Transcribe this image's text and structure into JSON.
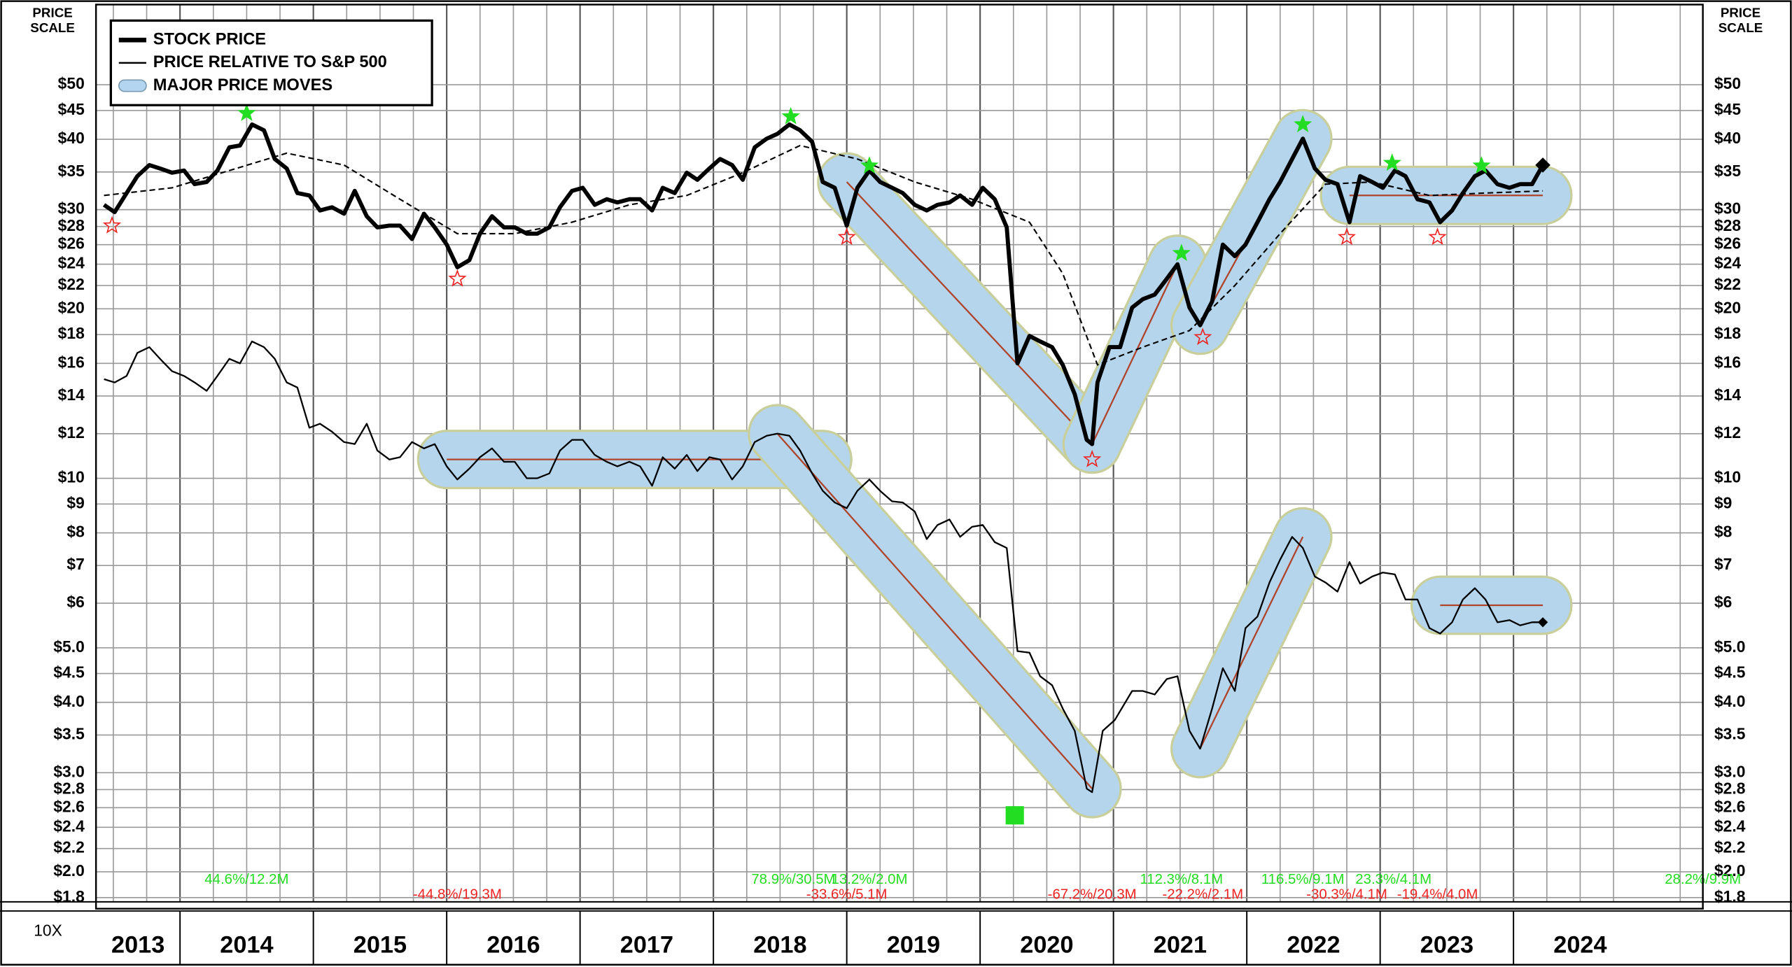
{
  "chart_data": {
    "type": "line",
    "log_scale": true,
    "grid": true,
    "price_scale": [
      "PRICE",
      "SCALE"
    ],
    "scale_note": "10X",
    "xlim": [
      2013.37,
      2025.42
    ],
    "xticks": [
      2013,
      2014,
      2015,
      2016,
      2017,
      2018,
      2019,
      2020,
      2021,
      2022,
      2023,
      2024
    ],
    "ylim": [
      1.72,
      69.4
    ],
    "yticks": [
      {
        "value": 50,
        "label": "$50"
      },
      {
        "value": 45,
        "label": "$45"
      },
      {
        "value": 40,
        "label": "$40"
      },
      {
        "value": 35,
        "label": "$35"
      },
      {
        "value": 30,
        "label": "$30"
      },
      {
        "value": 28,
        "label": "$28"
      },
      {
        "value": 26,
        "label": "$26"
      },
      {
        "value": 24,
        "label": "$24"
      },
      {
        "value": 22,
        "label": "$22"
      },
      {
        "value": 20,
        "label": "$20"
      },
      {
        "value": 18,
        "label": "$18"
      },
      {
        "value": 16,
        "label": "$16"
      },
      {
        "value": 14,
        "label": "$14"
      },
      {
        "value": 12,
        "label": "$12"
      },
      {
        "value": 10,
        "label": "$10"
      },
      {
        "value": 9,
        "label": "$9"
      },
      {
        "value": 8,
        "label": "$8"
      },
      {
        "value": 7,
        "label": "$7"
      },
      {
        "value": 6,
        "label": "$6"
      },
      {
        "value": 5,
        "label": "$5.0"
      },
      {
        "value": 4.5,
        "label": "$4.5"
      },
      {
        "value": 4,
        "label": "$4.0"
      },
      {
        "value": 3.5,
        "label": "$3.5"
      },
      {
        "value": 3,
        "label": "$3.0"
      },
      {
        "value": 2.8,
        "label": "$2.8"
      },
      {
        "value": 2.6,
        "label": "$2.6"
      },
      {
        "value": 2.4,
        "label": "$2.4"
      },
      {
        "value": 2.2,
        "label": "$2.2"
      },
      {
        "value": 2,
        "label": "$2.0"
      },
      {
        "value": 1.8,
        "label": "$1.8"
      }
    ],
    "series": [
      {
        "name": "STOCK PRICE",
        "color": "#000000",
        "style": "thick",
        "x": [
          2013.43,
          2013.51,
          2013.6,
          2013.68,
          2013.77,
          2013.85,
          2013.94,
          2014.03,
          2014.11,
          2014.2,
          2014.28,
          2014.37,
          2014.45,
          2014.54,
          2014.63,
          2014.71,
          2014.8,
          2014.88,
          2014.97,
          2015.05,
          2015.14,
          2015.23,
          2015.31,
          2015.4,
          2015.48,
          2015.57,
          2015.65,
          2015.74,
          2015.83,
          2015.91,
          2016.0,
          2016.08,
          2016.17,
          2016.25,
          2016.34,
          2016.43,
          2016.51,
          2016.6,
          2016.68,
          2016.77,
          2016.85,
          2016.94,
          2017.02,
          2017.11,
          2017.2,
          2017.28,
          2017.37,
          2017.45,
          2017.54,
          2017.62,
          2017.71,
          2017.8,
          2017.88,
          2017.97,
          2018.05,
          2018.14,
          2018.22,
          2018.31,
          2018.4,
          2018.48,
          2018.57,
          2018.65,
          2018.74,
          2018.82,
          2018.91,
          2019.0,
          2019.08,
          2019.17,
          2019.25,
          2019.34,
          2019.42,
          2019.51,
          2019.6,
          2019.68,
          2019.77,
          2019.85,
          2019.94,
          2020.02,
          2020.11,
          2020.2,
          2020.28,
          2020.37,
          2020.45,
          2020.54,
          2020.62,
          2020.71,
          2020.8,
          2020.84,
          2020.88,
          2020.97,
          2021.05,
          2021.14,
          2021.22,
          2021.31,
          2021.4,
          2021.48,
          2021.57,
          2021.65,
          2021.74,
          2021.82,
          2021.91,
          2021.99,
          2022.08,
          2022.17,
          2022.25,
          2022.34,
          2022.42,
          2022.51,
          2022.59,
          2022.68,
          2022.77,
          2022.85,
          2022.94,
          2023.02,
          2023.11,
          2023.19,
          2023.28,
          2023.37,
          2023.45,
          2023.54,
          2023.62,
          2023.71,
          2023.79,
          2023.88,
          2023.97,
          2024.05,
          2024.14,
          2024.22
        ],
        "values": [
          30.6,
          29.7,
          32.1,
          34.4,
          36.0,
          35.5,
          34.9,
          35.2,
          33.3,
          33.6,
          35.2,
          38.7,
          39.0,
          42.5,
          41.5,
          36.9,
          35.5,
          32.1,
          31.8,
          29.9,
          30.3,
          29.5,
          32.4,
          29.2,
          27.9,
          28.1,
          28.1,
          26.6,
          29.5,
          27.9,
          26.0,
          23.7,
          24.4,
          27.2,
          29.2,
          27.9,
          27.9,
          27.2,
          27.2,
          27.9,
          30.3,
          32.4,
          32.8,
          30.6,
          31.3,
          30.9,
          31.3,
          31.3,
          29.9,
          32.8,
          32.1,
          34.9,
          33.9,
          35.5,
          36.9,
          36.0,
          33.9,
          38.7,
          40.1,
          40.9,
          42.5,
          41.5,
          39.6,
          33.6,
          32.8,
          28.1,
          32.8,
          35.2,
          33.6,
          32.8,
          32.1,
          30.6,
          29.9,
          30.6,
          30.9,
          31.8,
          30.6,
          32.8,
          31.3,
          27.9,
          16.0,
          17.9,
          17.5,
          17.1,
          15.9,
          14.1,
          11.7,
          11.5,
          14.8,
          17.1,
          17.1,
          20.1,
          20.8,
          21.2,
          22.6,
          24.0,
          20.1,
          18.7,
          20.6,
          26.0,
          24.8,
          26.0,
          28.5,
          31.3,
          33.6,
          36.9,
          40.1,
          35.5,
          33.9,
          33.3,
          28.5,
          34.4,
          33.6,
          32.8,
          35.2,
          34.4,
          31.3,
          30.9,
          28.5,
          29.9,
          32.1,
          34.4,
          35.2,
          33.3,
          32.8,
          33.3,
          33.3,
          36.0
        ]
      },
      {
        "name": "PRICE RELATIVE TO S&P 500",
        "color": "#000000",
        "style": "thin",
        "x": [
          2013.43,
          2013.51,
          2013.6,
          2013.68,
          2013.77,
          2013.85,
          2013.94,
          2014.03,
          2014.11,
          2014.2,
          2014.28,
          2014.37,
          2014.45,
          2014.54,
          2014.63,
          2014.71,
          2014.8,
          2014.88,
          2014.97,
          2015.05,
          2015.14,
          2015.23,
          2015.31,
          2015.4,
          2015.48,
          2015.57,
          2015.65,
          2015.74,
          2015.83,
          2015.91,
          2016.0,
          2016.08,
          2016.17,
          2016.25,
          2016.34,
          2016.43,
          2016.51,
          2016.6,
          2016.68,
          2016.77,
          2016.85,
          2016.94,
          2017.02,
          2017.11,
          2017.2,
          2017.28,
          2017.37,
          2017.45,
          2017.54,
          2017.62,
          2017.71,
          2017.8,
          2017.88,
          2017.97,
          2018.05,
          2018.14,
          2018.22,
          2018.31,
          2018.4,
          2018.48,
          2018.57,
          2018.65,
          2018.74,
          2018.82,
          2018.91,
          2019.0,
          2019.08,
          2019.17,
          2019.25,
          2019.34,
          2019.42,
          2019.51,
          2019.6,
          2019.68,
          2019.77,
          2019.85,
          2019.94,
          2020.02,
          2020.11,
          2020.2,
          2020.28,
          2020.37,
          2020.45,
          2020.54,
          2020.62,
          2020.71,
          2020.8,
          2020.84,
          2020.92,
          2021.01,
          2021.14,
          2021.22,
          2021.31,
          2021.4,
          2021.48,
          2021.57,
          2021.65,
          2021.74,
          2021.82,
          2021.91,
          2021.99,
          2022.08,
          2022.17,
          2022.25,
          2022.34,
          2022.42,
          2022.51,
          2022.59,
          2022.68,
          2022.77,
          2022.85,
          2022.94,
          2023.02,
          2023.11,
          2023.19,
          2023.28,
          2023.37,
          2023.45,
          2023.54,
          2023.62,
          2023.71,
          2023.79,
          2023.88,
          2023.97,
          2024.05,
          2024.14,
          2024.22
        ],
        "values": [
          15.0,
          14.8,
          15.2,
          16.7,
          17.1,
          16.3,
          15.5,
          15.2,
          14.8,
          14.3,
          15.2,
          16.3,
          16.0,
          17.5,
          17.1,
          16.3,
          14.8,
          14.5,
          12.3,
          12.5,
          12.1,
          11.6,
          11.5,
          12.5,
          11.2,
          10.8,
          10.9,
          11.6,
          11.3,
          11.5,
          10.5,
          9.95,
          10.4,
          10.9,
          11.3,
          10.7,
          10.7,
          10.0,
          10.0,
          10.2,
          11.2,
          11.7,
          11.7,
          11.0,
          10.7,
          10.5,
          10.7,
          10.5,
          9.7,
          10.9,
          10.4,
          11.0,
          10.3,
          10.9,
          10.8,
          9.95,
          10.5,
          11.6,
          11.9,
          12.0,
          11.9,
          11.2,
          10.2,
          9.5,
          9.06,
          8.85,
          9.5,
          9.95,
          9.5,
          9.1,
          9.06,
          8.73,
          7.8,
          8.26,
          8.45,
          7.87,
          8.2,
          8.26,
          7.7,
          7.52,
          4.93,
          4.9,
          4.45,
          4.29,
          3.9,
          3.56,
          2.81,
          2.77,
          3.56,
          3.72,
          4.19,
          4.19,
          4.13,
          4.4,
          4.45,
          3.56,
          3.31,
          3.9,
          4.6,
          4.19,
          5.42,
          5.68,
          6.53,
          7.17,
          7.87,
          7.52,
          6.69,
          6.53,
          6.29,
          7.1,
          6.5,
          6.69,
          6.8,
          6.75,
          6.09,
          6.09,
          5.42,
          5.3,
          5.55,
          6.09,
          6.38,
          6.09,
          5.55,
          5.6,
          5.48,
          5.55,
          5.55
        ]
      }
    ],
    "moving_average": {
      "color": "#000000",
      "x": [
        2013.43,
        2013.94,
        2014.37,
        2014.8,
        2015.23,
        2015.65,
        2016.08,
        2016.51,
        2016.94,
        2017.37,
        2017.8,
        2018.22,
        2018.65,
        2019.08,
        2019.51,
        2019.94,
        2020.37,
        2020.62,
        2020.88,
        2021.22,
        2021.57,
        2021.91,
        2022.25,
        2022.59,
        2022.94,
        2023.37,
        2023.79,
        2024.22
      ],
      "values": [
        31.8,
        32.8,
        35.2,
        37.8,
        36.0,
        31.3,
        27.2,
        27.2,
        28.5,
        30.6,
        31.8,
        34.9,
        39.0,
        36.9,
        33.6,
        31.3,
        28.5,
        23.1,
        15.9,
        17.1,
        18.3,
        22.0,
        27.2,
        33.3,
        33.6,
        31.8,
        32.1,
        32.4
      ]
    },
    "moves_name": "MAJOR PRICE MOVES",
    "move_color": "#b4d5f0",
    "move_line_color": "#b0442a",
    "moves": [
      {
        "x": [
          2019.0,
          2020.84
        ],
        "values": [
          33.6,
          11.5
        ]
      },
      {
        "x": [
          2020.84,
          2021.48
        ],
        "values": [
          11.5,
          24.0
        ]
      },
      {
        "x": [
          2021.65,
          2022.42
        ],
        "values": [
          18.7,
          40.1
        ]
      },
      {
        "x": [
          2022.77,
          2024.22
        ],
        "values": [
          31.8,
          31.8
        ]
      },
      {
        "x": [
          2016.0,
          2018.82
        ],
        "values": [
          10.8,
          10.8
        ]
      },
      {
        "x": [
          2018.48,
          2020.84
        ],
        "values": [
          12.0,
          2.81
        ]
      },
      {
        "x": [
          2021.65,
          2022.42
        ],
        "values": [
          3.31,
          7.87
        ]
      },
      {
        "x": [
          2023.45,
          2024.22
        ],
        "values": [
          5.95,
          5.95
        ]
      }
    ],
    "gain_color": "#22dd22",
    "loss_color": "#ee2222",
    "markers": [
      {
        "kind": "peak",
        "x": 2014.5,
        "value": 44.5
      },
      {
        "kind": "peak",
        "x": 2018.58,
        "value": 43.9
      },
      {
        "kind": "peak",
        "x": 2019.17,
        "value": 35.9
      },
      {
        "kind": "peak",
        "x": 2021.51,
        "value": 25.1
      },
      {
        "kind": "peak",
        "x": 2022.42,
        "value": 42.5
      },
      {
        "kind": "peak",
        "x": 2023.09,
        "value": 36.3
      },
      {
        "kind": "peak",
        "x": 2023.76,
        "value": 35.9
      },
      {
        "kind": "trough",
        "x": 2013.49,
        "value": 28.1
      },
      {
        "kind": "trough",
        "x": 2016.08,
        "value": 22.6
      },
      {
        "kind": "trough",
        "x": 2019.0,
        "value": 26.8
      },
      {
        "kind": "trough",
        "x": 2020.84,
        "value": 10.8
      },
      {
        "kind": "trough",
        "x": 2021.67,
        "value": 17.8
      },
      {
        "kind": "trough",
        "x": 2022.75,
        "value": 26.8
      },
      {
        "kind": "trough",
        "x": 2023.43,
        "value": 26.8
      }
    ],
    "signal": {
      "x": 2020.26,
      "value": 2.52
    },
    "annotations": [
      {
        "kind": "gain",
        "x": 2014.5,
        "text": "44.6%/12.2M"
      },
      {
        "kind": "gain",
        "x": 2018.6,
        "text": "78.9%/30.5M"
      },
      {
        "kind": "gain",
        "x": 2019.17,
        "text": "13.2%/2.0M"
      },
      {
        "kind": "gain",
        "x": 2021.51,
        "text": "112.3%/8.1M"
      },
      {
        "kind": "gain",
        "x": 2022.42,
        "text": "116.5%/9.1M"
      },
      {
        "kind": "gain",
        "x": 2023.1,
        "text": "23.3%/4.1M"
      },
      {
        "kind": "gain",
        "x": 2025.42,
        "text": "28.2%/9.9M"
      },
      {
        "kind": "loss",
        "x": 2016.08,
        "text": "-44.8%/19.3M"
      },
      {
        "kind": "loss",
        "x": 2019.0,
        "text": "-33.6%/5.1M"
      },
      {
        "kind": "loss",
        "x": 2020.84,
        "text": "-67.2%/20.3M"
      },
      {
        "kind": "loss",
        "x": 2021.67,
        "text": "-22.2%/2.1M"
      },
      {
        "kind": "loss",
        "x": 2022.75,
        "text": "-30.3%/4.1M"
      },
      {
        "kind": "loss",
        "x": 2023.43,
        "text": "-19.4%/4.0M"
      }
    ]
  }
}
